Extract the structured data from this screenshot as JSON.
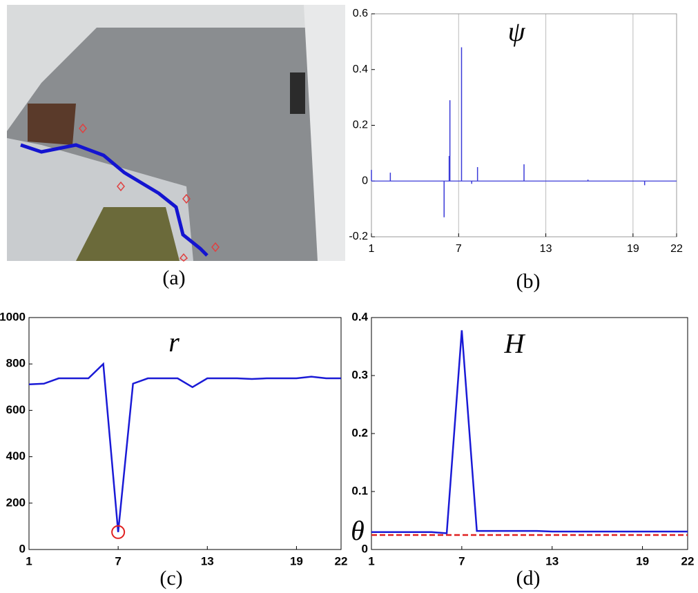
{
  "image_panel": {
    "caption": "(a)"
  },
  "chart_data": [
    {
      "type": "stem",
      "title": "ψ",
      "caption": "(b)",
      "color": "#3a3ad8",
      "x": [
        1,
        2.3,
        6,
        6.35,
        6.4,
        7.2,
        7.9,
        8.3,
        11.5,
        15.9,
        19.8
      ],
      "values": [
        0.04,
        0.03,
        -0.13,
        0.09,
        0.29,
        0.48,
        -0.01,
        0.05,
        0.06,
        0.005,
        -0.015
      ],
      "xlim": [
        1,
        22
      ],
      "xticks": [
        1,
        7,
        13,
        19,
        22
      ],
      "ylim": [
        -0.2,
        0.6
      ],
      "yticks": [
        0.6,
        0.4,
        0.2,
        0,
        -0.2
      ],
      "grid": true
    },
    {
      "type": "line",
      "title": "r",
      "caption": "(c)",
      "x": [
        1,
        2,
        3,
        4,
        5,
        6,
        7,
        8,
        9,
        10,
        11,
        12,
        13,
        14,
        15,
        16,
        17,
        18,
        19,
        20,
        21,
        22
      ],
      "series": [
        {
          "color": "#1a1ad6",
          "values": [
            712,
            715,
            738,
            738,
            738,
            800,
            75,
            715,
            738,
            738,
            738,
            700,
            738,
            738,
            738,
            735,
            738,
            738,
            738,
            745,
            738,
            738
          ]
        }
      ],
      "highlight": {
        "index": 6,
        "color": "#e02020"
      },
      "xlim": [
        1,
        22
      ],
      "xticks": [
        1,
        7,
        13,
        19,
        22
      ],
      "ylim": [
        0,
        1000
      ],
      "yticks": [
        1000,
        800,
        600,
        400,
        200,
        0
      ],
      "grid": false
    },
    {
      "type": "line",
      "title": "H",
      "caption": "(d)",
      "x": [
        1,
        2,
        3,
        4,
        5,
        6,
        7,
        8,
        9,
        10,
        11,
        12,
        13,
        14,
        15,
        16,
        17,
        18,
        19,
        20,
        21,
        22
      ],
      "series": [
        {
          "color": "#1a1ad6",
          "values": [
            0.03,
            0.03,
            0.03,
            0.03,
            0.03,
            0.028,
            0.378,
            0.032,
            0.032,
            0.032,
            0.032,
            0.032,
            0.031,
            0.031,
            0.031,
            0.031,
            0.031,
            0.031,
            0.031,
            0.031,
            0.031,
            0.031
          ]
        }
      ],
      "threshold": {
        "value": 0.025,
        "label": "θ",
        "color": "#e02020"
      },
      "xlim": [
        1,
        22
      ],
      "xticks": [
        1,
        7,
        13,
        19,
        22
      ],
      "ylim": [
        0,
        0.4
      ],
      "yticks": [
        0.4,
        0.3,
        0.2,
        0.1,
        0
      ],
      "grid": false
    }
  ]
}
